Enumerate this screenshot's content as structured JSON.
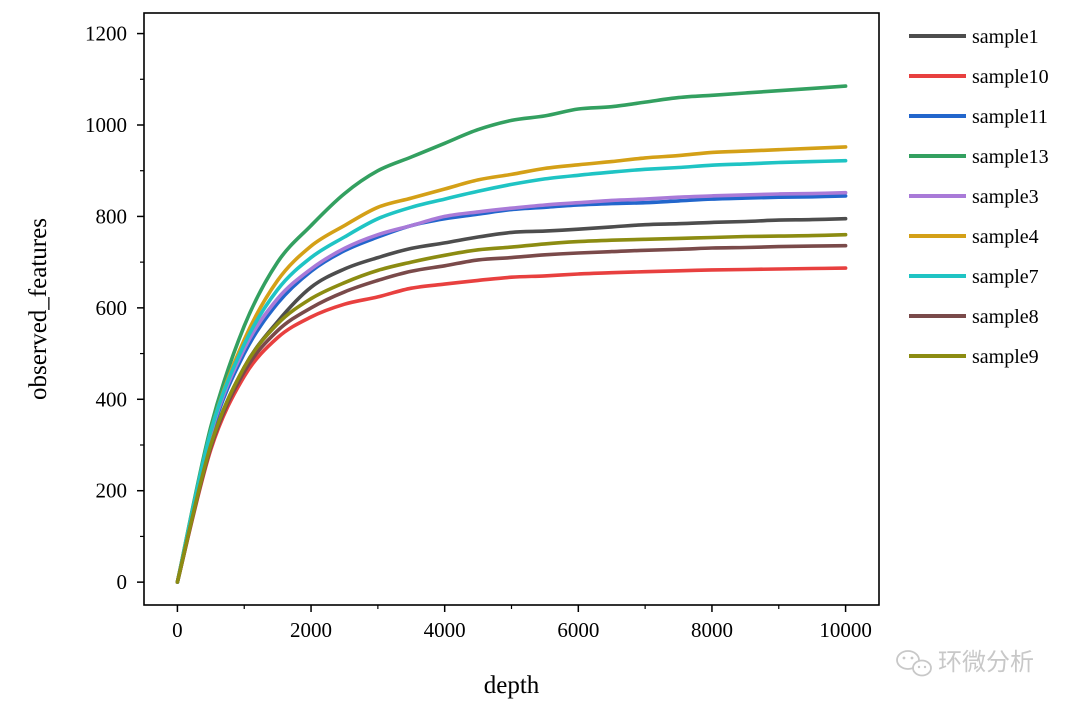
{
  "watermark": {
    "text": "环微分析"
  },
  "chart_data": {
    "type": "line",
    "title": "",
    "xlabel": "depth",
    "ylabel": "observed_features",
    "xlim": [
      -500,
      10500
    ],
    "ylim": [
      -50,
      1245
    ],
    "xticks": [
      0,
      2000,
      4000,
      6000,
      8000,
      10000
    ],
    "xtick_labels": [
      "0",
      "2000",
      "4000",
      "6000",
      "8000",
      "10000"
    ],
    "yticks": [
      0,
      200,
      400,
      600,
      800,
      1000,
      1200
    ],
    "ytick_labels": [
      "0",
      "200",
      "400",
      "600",
      "800",
      "1000",
      "1200"
    ],
    "grid": false,
    "legend_position": "right",
    "x": [
      0,
      500,
      1000,
      1500,
      2000,
      2500,
      3000,
      3500,
      4000,
      4500,
      5000,
      5500,
      6000,
      6500,
      7000,
      7500,
      8000,
      8500,
      9000,
      9500,
      10000
    ],
    "series": [
      {
        "name": "sample1",
        "color": "#4d4d4d",
        "values": [
          0,
          300,
          470,
          570,
          645,
          685,
          710,
          730,
          742,
          755,
          765,
          768,
          772,
          777,
          782,
          784,
          787,
          789,
          792,
          793,
          795
        ]
      },
      {
        "name": "sample10",
        "color": "#e8403f",
        "values": [
          0,
          290,
          450,
          535,
          580,
          608,
          624,
          643,
          652,
          660,
          667,
          670,
          674,
          677,
          679,
          681,
          683,
          684,
          685,
          686,
          687
        ]
      },
      {
        "name": "sample11",
        "color": "#2266cc",
        "values": [
          0,
          320,
          500,
          610,
          680,
          725,
          755,
          780,
          795,
          805,
          815,
          820,
          825,
          828,
          830,
          834,
          838,
          840,
          842,
          843,
          845
        ]
      },
      {
        "name": "sample13",
        "color": "#33a060",
        "values": [
          0,
          340,
          560,
          700,
          780,
          850,
          900,
          930,
          960,
          990,
          1010,
          1020,
          1035,
          1040,
          1050,
          1060,
          1065,
          1070,
          1075,
          1080,
          1085
        ]
      },
      {
        "name": "sample3",
        "color": "#a97ad8",
        "values": [
          0,
          325,
          510,
          620,
          685,
          730,
          760,
          780,
          800,
          810,
          818,
          825,
          830,
          835,
          838,
          842,
          845,
          847,
          849,
          850,
          852
        ]
      },
      {
        "name": "sample4",
        "color": "#d4a017",
        "values": [
          0,
          330,
          530,
          660,
          735,
          780,
          820,
          840,
          860,
          880,
          892,
          905,
          913,
          920,
          928,
          933,
          940,
          943,
          946,
          949,
          952
        ]
      },
      {
        "name": "sample7",
        "color": "#1fc4c4",
        "values": [
          0,
          330,
          520,
          640,
          710,
          755,
          795,
          820,
          838,
          855,
          870,
          882,
          890,
          897,
          903,
          907,
          912,
          915,
          918,
          920,
          922
        ]
      },
      {
        "name": "sample8",
        "color": "#7a4a4a",
        "values": [
          0,
          295,
          460,
          550,
          600,
          635,
          660,
          680,
          692,
          705,
          710,
          716,
          720,
          723,
          726,
          728,
          731,
          732,
          734,
          735,
          736
        ]
      },
      {
        "name": "sample9",
        "color": "#8c8c12",
        "values": [
          0,
          300,
          470,
          565,
          620,
          655,
          682,
          700,
          715,
          727,
          733,
          740,
          745,
          748,
          750,
          752,
          754,
          756,
          757,
          758,
          760
        ]
      }
    ]
  }
}
